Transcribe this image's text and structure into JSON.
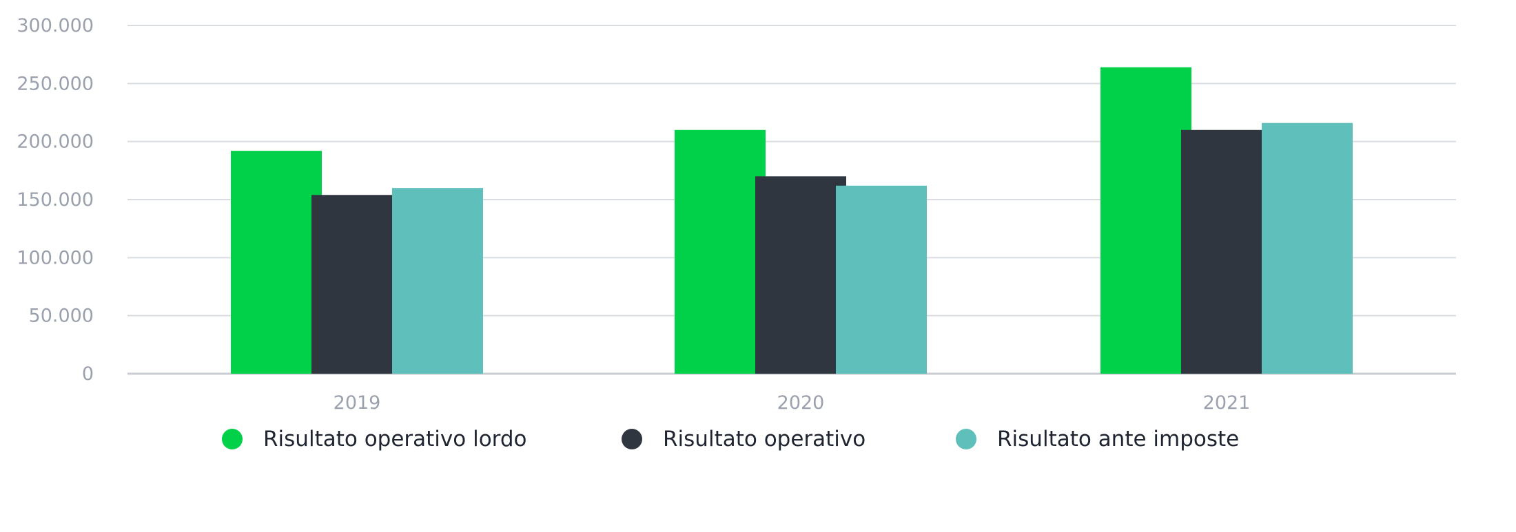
{
  "chart_data": {
    "type": "bar",
    "categories": [
      "2019",
      "2020",
      "2021"
    ],
    "series": [
      {
        "name": "Risultato operativo lordo",
        "color": "#00d148",
        "values": [
          192000,
          210000,
          264000
        ]
      },
      {
        "name": "Risultato operativo",
        "color": "#30363f",
        "values": [
          154000,
          170000,
          210000
        ]
      },
      {
        "name": "Risultato ante imposte",
        "color": "#5ebfbb",
        "values": [
          160000,
          162000,
          216000
        ]
      }
    ],
    "y_ticks": [
      "0",
      "50.000",
      "100.000",
      "150.000",
      "200.000",
      "250.000",
      "300.000"
    ],
    "ylim": [
      0,
      300000
    ],
    "grid": true,
    "legend_position": "bottom",
    "title": "",
    "xlabel": "",
    "ylabel": ""
  }
}
